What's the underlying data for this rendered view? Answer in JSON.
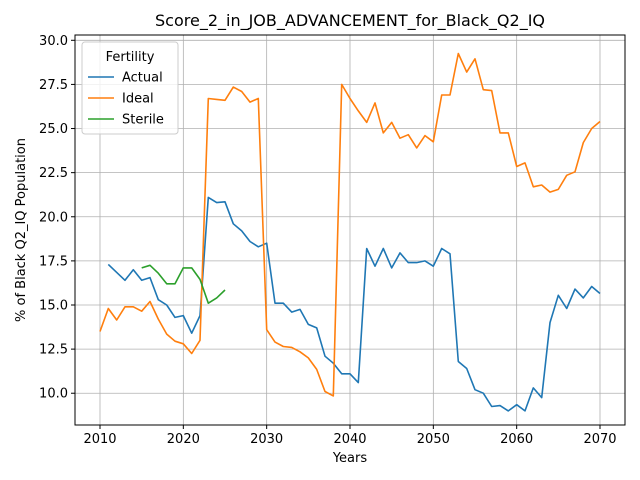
{
  "chart_data": {
    "type": "line",
    "title": "Score_2_in_JOB_ADVANCEMENT_for_Black_Q2_IQ",
    "xlabel": "Years",
    "ylabel": "% of Black Q2_IQ Population",
    "xlim": [
      2007,
      2073
    ],
    "ylim": [
      8.2,
      30.3
    ],
    "xticks": [
      2010,
      2020,
      2030,
      2040,
      2050,
      2060,
      2070
    ],
    "yticks": [
      10.0,
      12.5,
      15.0,
      17.5,
      20.0,
      22.5,
      25.0,
      27.5,
      30.0
    ],
    "ytick_labels": [
      "10.0",
      "12.5",
      "15.0",
      "17.5",
      "20.0",
      "22.5",
      "25.0",
      "27.5",
      "30.0"
    ],
    "grid": true,
    "legend": {
      "title": "Fertility",
      "position": "upper-left"
    },
    "series": [
      {
        "name": "Actual",
        "color": "#1f77b4",
        "x": [
          2011,
          2012,
          2013,
          2014,
          2015,
          2016,
          2017,
          2018,
          2019,
          2020,
          2021,
          2022,
          2023,
          2024,
          2025,
          2026,
          2027,
          2028,
          2029,
          2030,
          2031,
          2032,
          2033,
          2034,
          2035,
          2036,
          2037,
          2038,
          2039,
          2040,
          2041,
          2042,
          2043,
          2044,
          2045,
          2046,
          2047,
          2048,
          2049,
          2050,
          2051,
          2052,
          2053,
          2054,
          2055,
          2056,
          2057,
          2058,
          2059,
          2060,
          2061,
          2062,
          2063,
          2064,
          2065,
          2066,
          2067,
          2068,
          2069,
          2070
        ],
        "values": [
          17.3,
          16.85,
          16.4,
          17.0,
          16.4,
          16.55,
          15.3,
          15.0,
          14.3,
          14.4,
          13.4,
          14.4,
          21.1,
          20.8,
          20.85,
          19.6,
          19.2,
          18.6,
          18.3,
          18.5,
          15.1,
          15.1,
          14.6,
          14.75,
          13.9,
          13.7,
          12.1,
          11.7,
          11.1,
          11.1,
          10.6,
          18.2,
          17.2,
          18.2,
          17.1,
          17.95,
          17.4,
          17.4,
          17.5,
          17.2,
          18.2,
          17.9,
          11.8,
          11.4,
          10.2,
          10.0,
          9.25,
          9.3,
          9.0,
          9.35,
          9.0,
          10.3,
          9.75,
          14.0,
          15.55,
          14.8,
          15.9,
          15.4,
          16.05,
          15.65
        ]
      },
      {
        "name": "Ideal",
        "color": "#ff7f0e",
        "x": [
          2010,
          2011,
          2012,
          2013,
          2014,
          2015,
          2016,
          2017,
          2018,
          2019,
          2020,
          2021,
          2022,
          2023,
          2024,
          2025,
          2026,
          2027,
          2028,
          2029,
          2030,
          2031,
          2032,
          2033,
          2034,
          2035,
          2036,
          2037,
          2038,
          2039,
          2040,
          2041,
          2042,
          2043,
          2044,
          2045,
          2046,
          2047,
          2048,
          2049,
          2050,
          2051,
          2052,
          2053,
          2054,
          2055,
          2056,
          2057,
          2058,
          2059,
          2060,
          2061,
          2062,
          2063,
          2064,
          2065,
          2066,
          2067,
          2068,
          2069,
          2070
        ],
        "values": [
          13.5,
          14.8,
          14.15,
          14.9,
          14.9,
          14.65,
          15.2,
          14.2,
          13.35,
          12.95,
          12.8,
          12.25,
          13.0,
          26.7,
          26.65,
          26.6,
          27.35,
          27.1,
          26.5,
          26.7,
          13.6,
          12.9,
          12.65,
          12.6,
          12.35,
          12.0,
          11.35,
          10.1,
          9.85,
          27.5,
          26.7,
          26.0,
          25.35,
          26.45,
          24.75,
          25.35,
          24.45,
          24.65,
          23.9,
          24.6,
          24.25,
          26.9,
          26.9,
          29.25,
          28.2,
          28.95,
          27.2,
          27.15,
          24.75,
          24.75,
          22.85,
          23.05,
          21.7,
          21.8,
          21.4,
          21.55,
          22.35,
          22.55,
          24.2,
          25.0,
          25.4
        ]
      },
      {
        "name": "Sterile",
        "color": "#2ca02c",
        "x": [
          2015,
          2016,
          2017,
          2018,
          2019,
          2020,
          2021,
          2022,
          2023,
          2024,
          2025
        ],
        "values": [
          17.1,
          17.25,
          16.8,
          16.2,
          16.2,
          17.1,
          17.1,
          16.45,
          15.1,
          15.4,
          15.85
        ]
      }
    ]
  }
}
